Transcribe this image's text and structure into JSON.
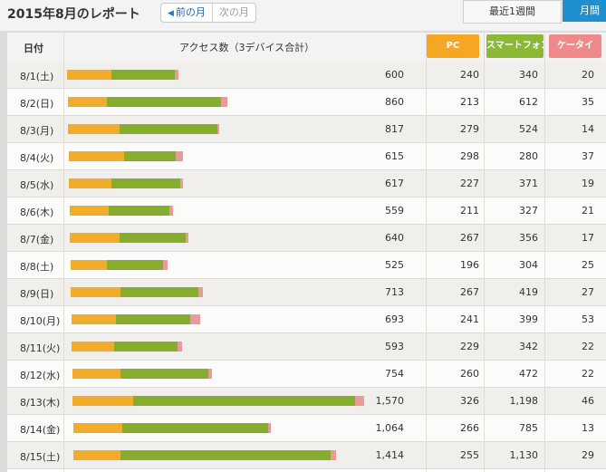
{
  "header": {
    "title": "2015年8月のレポート",
    "prev_label": "前の月",
    "next_label": "次の月",
    "tabs": [
      "最近1週間",
      "月間"
    ]
  },
  "colors": {
    "pc": "#f0ac2a",
    "smartphone": "#86ad2e",
    "keitai": "#eb9a9a",
    "active_tab": "#1f8fcf"
  },
  "table": {
    "headers": {
      "date": "日付",
      "access": "アクセス数（3デバイス合計）",
      "pc": "PC",
      "smartphone": "スマートフォン",
      "keitai": "ケータイ"
    },
    "rows": [
      {
        "date": "8/1(土)",
        "total": "600",
        "pc": "240",
        "sp": "340",
        "kt": "20"
      },
      {
        "date": "8/2(日)",
        "total": "860",
        "pc": "213",
        "sp": "612",
        "kt": "35"
      },
      {
        "date": "8/3(月)",
        "total": "817",
        "pc": "279",
        "sp": "524",
        "kt": "14"
      },
      {
        "date": "8/4(火)",
        "total": "615",
        "pc": "298",
        "sp": "280",
        "kt": "37"
      },
      {
        "date": "8/5(水)",
        "total": "617",
        "pc": "227",
        "sp": "371",
        "kt": "19"
      },
      {
        "date": "8/6(木)",
        "total": "559",
        "pc": "211",
        "sp": "327",
        "kt": "21"
      },
      {
        "date": "8/7(金)",
        "total": "640",
        "pc": "267",
        "sp": "356",
        "kt": "17"
      },
      {
        "date": "8/8(土)",
        "total": "525",
        "pc": "196",
        "sp": "304",
        "kt": "25"
      },
      {
        "date": "8/9(日)",
        "total": "713",
        "pc": "267",
        "sp": "419",
        "kt": "27"
      },
      {
        "date": "8/10(月)",
        "total": "693",
        "pc": "241",
        "sp": "399",
        "kt": "53"
      },
      {
        "date": "8/11(火)",
        "total": "593",
        "pc": "229",
        "sp": "342",
        "kt": "22"
      },
      {
        "date": "8/12(水)",
        "total": "754",
        "pc": "260",
        "sp": "472",
        "kt": "22"
      },
      {
        "date": "8/13(木)",
        "total": "1,570",
        "pc": "326",
        "sp": "1,198",
        "kt": "46"
      },
      {
        "date": "8/14(金)",
        "total": "1,064",
        "pc": "266",
        "sp": "785",
        "kt": "13"
      },
      {
        "date": "8/15(土)",
        "total": "1,414",
        "pc": "255",
        "sp": "1,130",
        "kt": "29"
      }
    ]
  }
}
